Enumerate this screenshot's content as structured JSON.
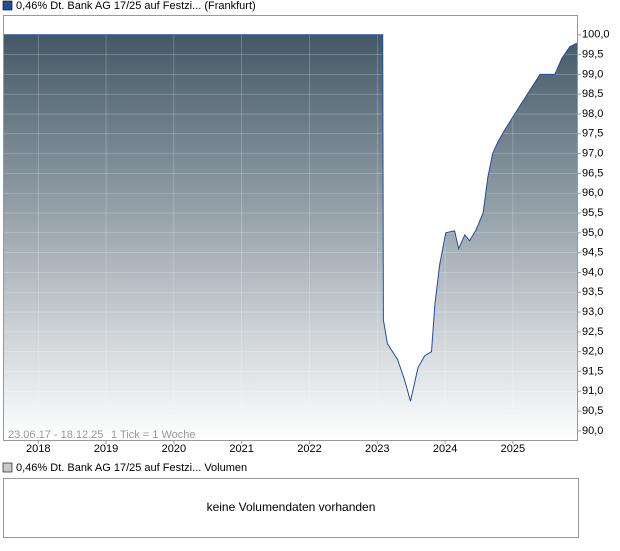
{
  "chart_data": {
    "type": "area",
    "series": [
      {
        "name": "0,46% Dt. Bank AG 17/25 auf Festzi... (Frankfurt)",
        "color": "#1f4ea0",
        "x": [
          2017.48,
          2023.08,
          2023.09,
          2023.15,
          2023.3,
          2023.4,
          2023.49,
          2023.6,
          2023.7,
          2023.8,
          2023.85,
          2023.92,
          2024.01,
          2024.14,
          2024.2,
          2024.29,
          2024.36,
          2024.45,
          2024.56,
          2024.63,
          2024.7,
          2024.78,
          2024.88,
          2024.99,
          2025.1,
          2025.25,
          2025.4,
          2025.62,
          2025.72,
          2025.84,
          2025.96
        ],
        "values": [
          100.0,
          100.0,
          92.8,
          92.2,
          91.8,
          91.3,
          90.75,
          91.6,
          91.9,
          92.0,
          93.2,
          94.2,
          95.0,
          95.05,
          94.6,
          94.95,
          94.8,
          95.05,
          95.5,
          96.4,
          97.0,
          97.3,
          97.6,
          97.9,
          98.2,
          98.6,
          99.0,
          99.0,
          99.4,
          99.7,
          99.8
        ]
      }
    ],
    "xlim": [
      2017.48,
      2025.96
    ],
    "xticks": [
      2018,
      2019,
      2020,
      2021,
      2022,
      2023,
      2024,
      2025
    ],
    "ylim": [
      89.77,
      100.5
    ],
    "yticks": [
      {
        "value": 90,
        "label": "90,0"
      },
      {
        "value": 90.5,
        "label": "90,5"
      },
      {
        "value": 91,
        "label": "91,0"
      },
      {
        "value": 91.5,
        "label": "91,5"
      },
      {
        "value": 92,
        "label": "92,0"
      },
      {
        "value": 92.5,
        "label": "92,5"
      },
      {
        "value": 93,
        "label": "93,0"
      },
      {
        "value": 93.5,
        "label": "93,5"
      },
      {
        "value": 94,
        "label": "94,0"
      },
      {
        "value": 94.5,
        "label": "94,5"
      },
      {
        "value": 95,
        "label": "95,0"
      },
      {
        "value": 95.5,
        "label": "95,5"
      },
      {
        "value": 96,
        "label": "96,0"
      },
      {
        "value": 96.5,
        "label": "96,5"
      },
      {
        "value": 97,
        "label": "97,0"
      },
      {
        "value": 97.5,
        "label": "97,5"
      },
      {
        "value": 98,
        "label": "98,0"
      },
      {
        "value": 98.5,
        "label": "98,5"
      },
      {
        "value": 99,
        "label": "99,0"
      },
      {
        "value": 99.5,
        "label": "99,5"
      },
      {
        "value": 100,
        "label": "100,0"
      }
    ],
    "grid": true,
    "range_label": "23.06.17 - 18.12.25",
    "tick_info": "1 Tick = 1 Woche"
  },
  "volume_panel": {
    "legend": "0,46% Dt. Bank AG 17/25 auf Festzi... Volumen",
    "message": "keine Volumendaten vorhanden"
  }
}
